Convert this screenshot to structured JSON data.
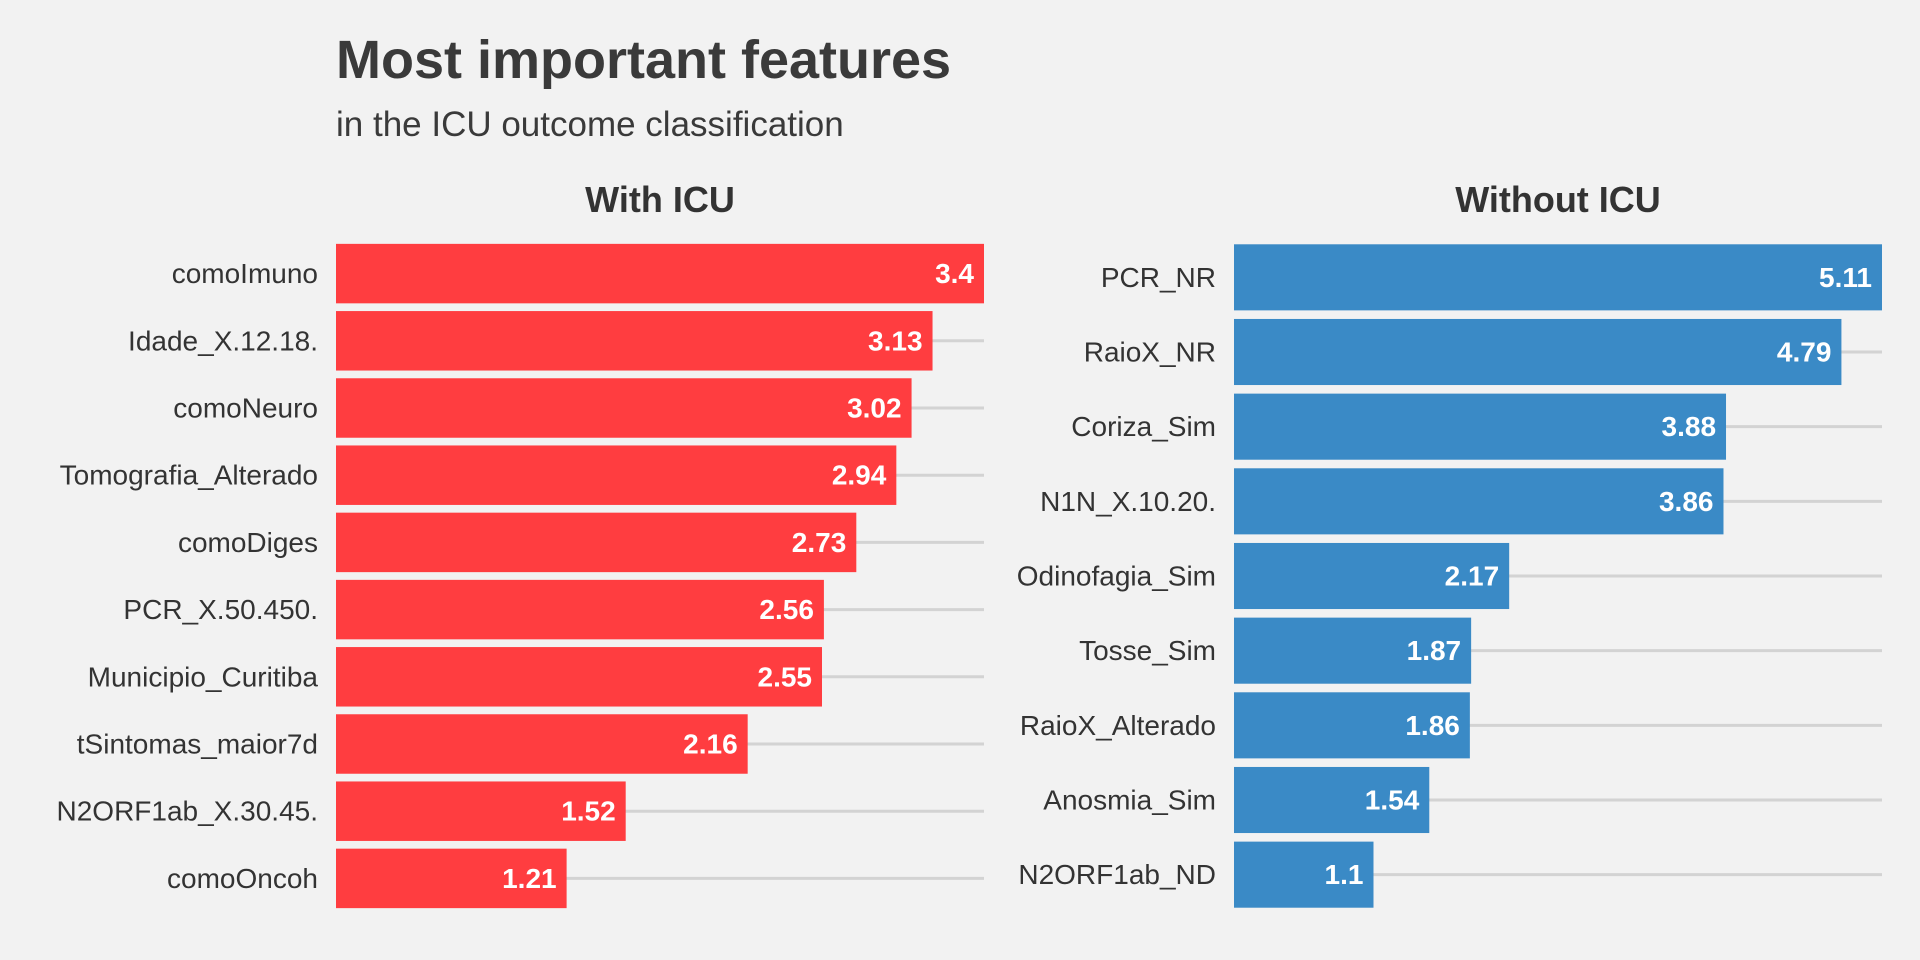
{
  "chart_data": [
    {
      "type": "bar",
      "orientation": "horizontal",
      "title": "Most important features",
      "subtitle": "in the ICU outcome classification",
      "panel": "With ICU",
      "color": "#ff3d40",
      "categories": [
        "comoImuno",
        "Idade_X.12.18.",
        "comoNeuro",
        "Tomografia_Alterado",
        "comoDiges",
        "PCR_X.50.450.",
        "Municipio_Curitiba",
        "tSintomas_maior7d",
        "N2ORF1ab_X.30.45.",
        "comoOncoh"
      ],
      "values": [
        3.4,
        3.13,
        3.02,
        2.94,
        2.73,
        2.56,
        2.55,
        2.16,
        1.52,
        1.21
      ],
      "value_labels": [
        "3.4",
        "3.13",
        "3.02",
        "2.94",
        "2.73",
        "2.56",
        "2.55",
        "2.16",
        "1.52",
        "1.21"
      ],
      "xlim": [
        0,
        3.4
      ],
      "grid": "horizontal",
      "xlabel": "",
      "ylabel": ""
    },
    {
      "type": "bar",
      "orientation": "horizontal",
      "panel": "Without ICU",
      "color": "#3a8ac6",
      "categories": [
        "PCR_NR",
        "RaioX_NR",
        "Coriza_Sim",
        "N1N_X.10.20.",
        "Odinofagia_Sim",
        "Tosse_Sim",
        "RaioX_Alterado",
        "Anosmia_Sim",
        "N2ORF1ab_ND"
      ],
      "values": [
        5.11,
        4.79,
        3.88,
        3.86,
        2.17,
        1.87,
        1.86,
        1.54,
        1.1
      ],
      "value_labels": [
        "5.11",
        "4.79",
        "3.88",
        "3.86",
        "2.17",
        "1.87",
        "1.86",
        "1.54",
        "1.1"
      ],
      "xlim": [
        0,
        5.11
      ],
      "grid": "horizontal",
      "xlabel": "",
      "ylabel": ""
    }
  ]
}
